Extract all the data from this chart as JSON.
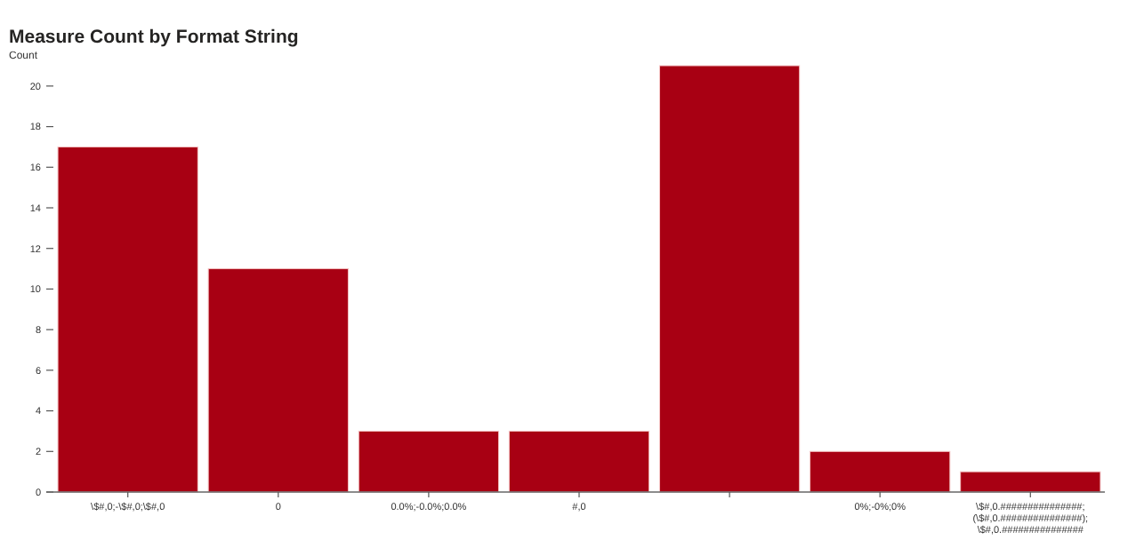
{
  "chart_data": {
    "type": "bar",
    "title": "Measure Count by Format String",
    "ylabel": "Count",
    "categories": [
      "\\$#,0;-\\$#,0;\\$#,0",
      "0",
      "0.0%;-0.0%;0.0%",
      "#,0",
      null,
      "0%;-0%;0%",
      "\\$#,0.###############;(\\$#,0.###############);\\$#,0.###############"
    ],
    "values": [
      17,
      11,
      3,
      3,
      21,
      2,
      1
    ],
    "color": "#a80013",
    "ylim": [
      0,
      21
    ],
    "yticks": [
      0,
      2,
      4,
      6,
      8,
      10,
      12,
      14,
      16,
      18,
      20
    ],
    "grid": false
  }
}
